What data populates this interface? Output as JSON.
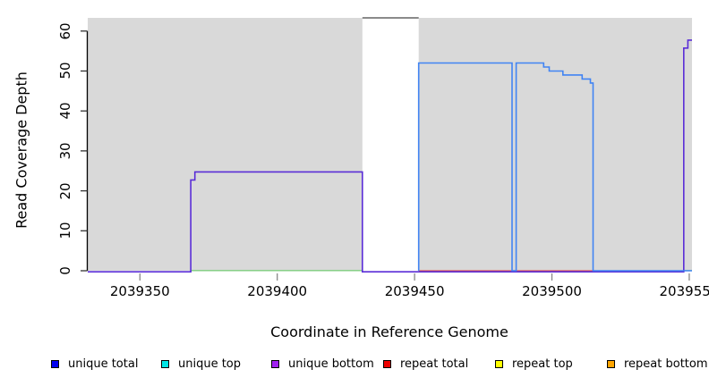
{
  "chart_data": {
    "type": "line",
    "subtype": "step-coverage-plot",
    "title": "",
    "xlabel": "Coordinate in Reference Genome",
    "ylabel": "Read Coverage Depth",
    "xlim": [
      2039331,
      2039551
    ],
    "ylim": [
      0,
      63.3
    ],
    "grid": false,
    "x_ticks": [
      {
        "value": 2039350,
        "label": "2039350"
      },
      {
        "value": 2039400,
        "label": "2039400"
      },
      {
        "value": 2039450,
        "label": "2039450"
      },
      {
        "value": 2039500,
        "label": "2039500"
      },
      {
        "value": 2039550,
        "label": "2039550"
      }
    ],
    "y_ticks": [
      {
        "value": 0,
        "label": "0"
      },
      {
        "value": 10,
        "label": "10"
      },
      {
        "value": 20,
        "label": "20"
      },
      {
        "value": 30,
        "label": "30"
      },
      {
        "value": 40,
        "label": "40"
      },
      {
        "value": 50,
        "label": "50"
      },
      {
        "value": 60,
        "label": "60"
      }
    ],
    "shaded_regions": [
      {
        "name": "gray-band-left",
        "x0": 2039331,
        "x1": 2039431,
        "color": "#d9d9d9"
      },
      {
        "name": "gray-band-right",
        "x0": 2039451.5,
        "x1": 2039551,
        "color": "#d9d9d9"
      }
    ],
    "gap_region": {
      "name": "white-gap",
      "x0": 2039431,
      "x1": 2039451.5,
      "color": "#ffffff"
    },
    "clipped_top_segment": {
      "x0": 2039431,
      "x1": 2039451.5,
      "y": 63.3,
      "color": "#8a8a8a"
    },
    "series": [
      {
        "name": "zero-line-green",
        "color": "#7ccd7c",
        "width": 1.3,
        "segments": [
          [
            [
              2039368.5,
              0
            ],
            [
              2039431,
              0
            ]
          ],
          [
            [
              2039548,
              0
            ],
            [
              2039551,
              0
            ]
          ]
        ]
      },
      {
        "name": "repeat total",
        "color": "#e05555",
        "width": 1.3,
        "segments": [
          [
            [
              2039451.5,
              0
            ],
            [
              2039515,
              0
            ]
          ]
        ]
      },
      {
        "name": "unique bottom",
        "color": "#5a2dd7",
        "width": 1.6,
        "segments": [
          [
            [
              2039331,
              0
            ],
            [
              2039368.5,
              0
            ],
            [
              2039368.5,
              23
            ],
            [
              2039370,
              23
            ],
            [
              2039370,
              25
            ],
            [
              2039431,
              25
            ],
            [
              2039431,
              0
            ],
            [
              2039548,
              0
            ],
            [
              2039548,
              56
            ],
            [
              2039549.5,
              56
            ],
            [
              2039549.5,
              58
            ],
            [
              2039551,
              58
            ]
          ]
        ]
      },
      {
        "name": "unique total",
        "color": "#4184f3",
        "width": 1.6,
        "segments": [
          [
            [
              2039451.5,
              0
            ],
            [
              2039451.5,
              52
            ],
            [
              2039485.5,
              52
            ],
            [
              2039485.5,
              0
            ],
            [
              2039487,
              0
            ],
            [
              2039487,
              52
            ],
            [
              2039497,
              52
            ],
            [
              2039497,
              51
            ],
            [
              2039499,
              51
            ],
            [
              2039499,
              50
            ],
            [
              2039504,
              50
            ],
            [
              2039504,
              49
            ],
            [
              2039511,
              49
            ],
            [
              2039511,
              48
            ],
            [
              2039514,
              48
            ],
            [
              2039514,
              47
            ],
            [
              2039515,
              47
            ],
            [
              2039515,
              0
            ],
            [
              2039551,
              0
            ]
          ]
        ]
      }
    ],
    "legend_position": "bottom"
  },
  "axis_titles": {
    "x": "Coordinate in Reference Genome",
    "y": "Read Coverage Depth"
  },
  "legend": [
    {
      "label": "unique total",
      "color": "#0000ee"
    },
    {
      "label": "unique top",
      "color": "#00e5e5"
    },
    {
      "label": "unique bottom",
      "color": "#a020f0"
    },
    {
      "label": "repeat total",
      "color": "#ee0000"
    },
    {
      "label": "repeat top",
      "color": "#ffff00"
    },
    {
      "label": "repeat bottom",
      "color": "#ffa500"
    }
  ],
  "colors": {
    "band_gray": "#d9d9d9",
    "axis_black": "#000000",
    "tick_gray": "#888888",
    "clipped_segment_gray": "#8a8a8a"
  }
}
